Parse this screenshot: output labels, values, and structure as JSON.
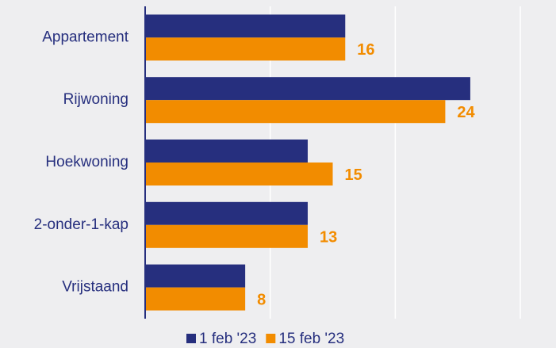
{
  "chart_data": {
    "type": "bar",
    "orientation": "horizontal",
    "categories": [
      "Appartement",
      "Rijwoning",
      "Hoekwoning",
      "2-onder-1-kap",
      "Vrijstaand"
    ],
    "series": [
      {
        "name": "1 feb '23",
        "color": "#262f7e",
        "values": [
          16,
          26,
          13,
          13,
          8
        ]
      },
      {
        "name": "15 feb '23",
        "color": "#f28c00",
        "values": [
          16,
          24,
          15,
          13,
          8
        ],
        "show_labels": true
      }
    ],
    "xlim": [
      0,
      30
    ],
    "xticks": [
      0,
      10,
      20,
      30
    ],
    "grid": true,
    "legend": "bottom"
  }
}
